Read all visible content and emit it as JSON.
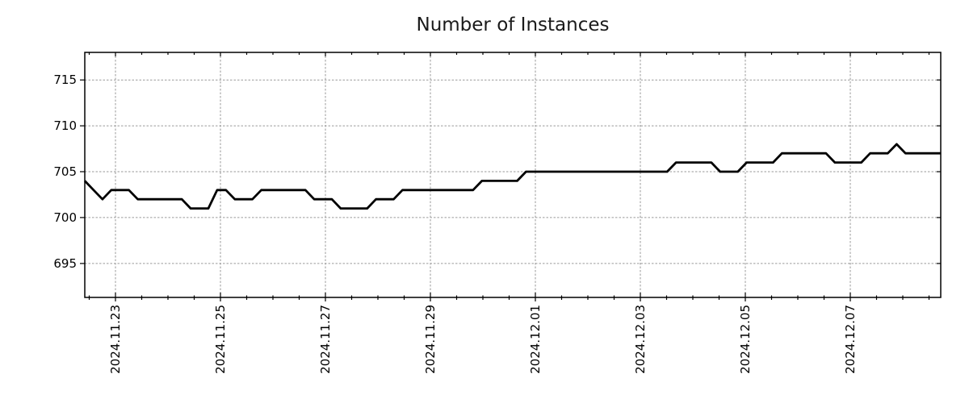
{
  "chart_data": {
    "type": "line",
    "title": "Number of Instances",
    "xlabel": "",
    "ylabel": "",
    "legend": "none",
    "grid": "dotted-both-axes",
    "style": {
      "line_color": "#000000",
      "grid_color": "#9a9a9a",
      "axis_color": "#000000",
      "background_color": "#ffffff"
    },
    "x_axis": {
      "tick_labels": [
        "2024.11.23",
        "2024.11.25",
        "2024.11.27",
        "2024.11.29",
        "2024.12.01",
        "2024.12.03",
        "2024.12.05",
        "2024.12.07"
      ],
      "tick_label_rotation_deg": 90,
      "first_major_frac": 0.03585,
      "major_spacing_frac": 0.12264,
      "minor_ticks_per_major": 4
    },
    "y_axis": {
      "ticks": [
        695,
        700,
        705,
        710,
        715
      ],
      "lim": [
        691.3,
        718.0
      ]
    },
    "series": [
      {
        "name": "instances",
        "values": [
          704,
          703,
          702,
          703,
          703,
          703,
          702,
          702,
          702,
          702,
          702,
          702,
          701,
          701,
          701,
          703,
          703,
          702,
          702,
          702,
          703,
          703,
          703,
          703,
          703,
          703,
          702,
          702,
          702,
          701,
          701,
          701,
          701,
          702,
          702,
          702,
          703,
          703,
          703,
          703,
          703,
          703,
          703,
          703,
          703,
          704,
          704,
          704,
          704,
          704,
          705,
          705,
          705,
          705,
          705,
          705,
          705,
          705,
          705,
          705,
          705,
          705,
          705,
          705,
          705,
          705,
          705,
          706,
          706,
          706,
          706,
          706,
          705,
          705,
          705,
          706,
          706,
          706,
          706,
          707,
          707,
          707,
          707,
          707,
          707,
          706,
          706,
          706,
          706,
          707,
          707,
          707,
          708,
          707,
          707,
          707,
          707,
          707
        ]
      }
    ]
  }
}
